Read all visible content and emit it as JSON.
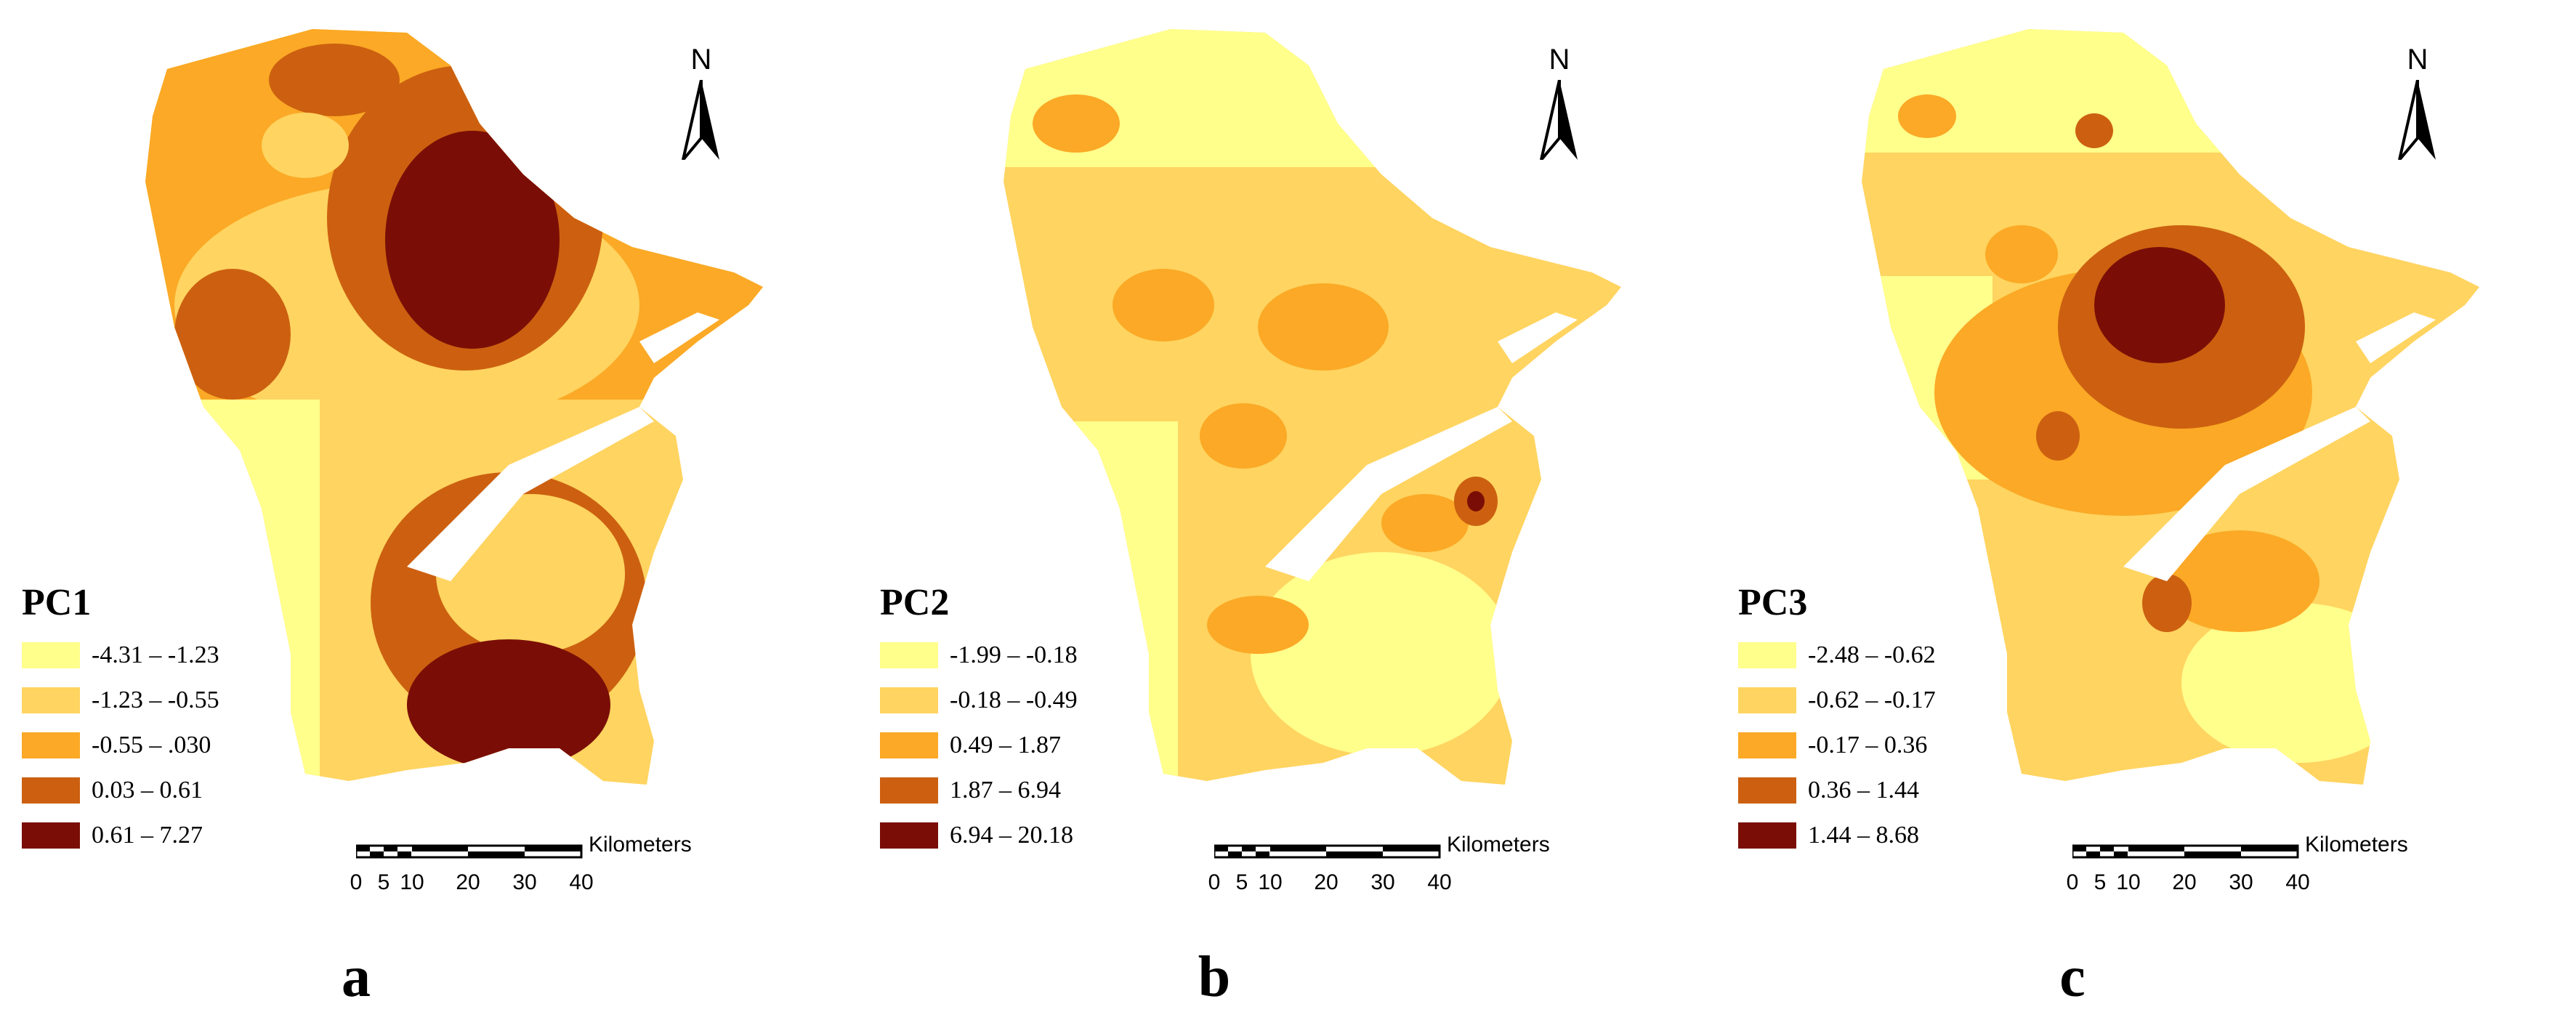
{
  "colors": [
    "#ffff8c",
    "#ffd460",
    "#fba926",
    "#cc6010",
    "#7a0e06"
  ],
  "panels": [
    {
      "letter": "a",
      "title": "PC1",
      "legend": [
        "-4.31 – -1.23",
        "-1.23 – -0.55",
        "-0.55 – .030",
        "0.03 – 0.61",
        "0.61 – 7.27"
      ]
    },
    {
      "letter": "b",
      "title": "PC2",
      "legend": [
        "-1.99 – -0.18",
        "-0.18 – -0.49",
        "0.49 – 1.87",
        "1.87 – 6.94",
        "6.94 – 20.18"
      ]
    },
    {
      "letter": "c",
      "title": "PC3",
      "legend": [
        "-2.48 – -0.62",
        "-0.62 – -0.17",
        "-0.17 – 0.36",
        "0.36 – 1.44",
        "1.44 – 8.68"
      ]
    }
  ],
  "north_label": "N",
  "scale": {
    "unit": "Kilometers",
    "ticks": [
      "0",
      "5",
      "10",
      "20",
      "30",
      "40"
    ]
  }
}
